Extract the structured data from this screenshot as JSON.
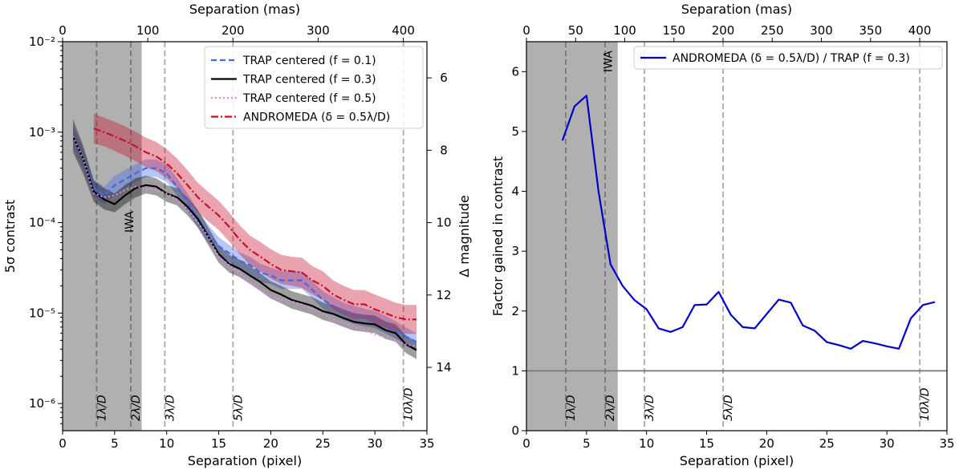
{
  "figure_title": "",
  "chart_data": [
    {
      "type": "line",
      "id": "left",
      "xlabel": "Separation (pixel)",
      "ylabel": "5σ contrast",
      "top_xlabel": "Separation (mas)",
      "right_ylabel": "Δ magnitude",
      "xlim": [
        0,
        35
      ],
      "ylim_log10": [
        -6.3,
        -2
      ],
      "top_xlim_mas": [
        0,
        427.7
      ],
      "xticks": [
        0,
        5,
        10,
        15,
        20,
        25,
        30,
        35
      ],
      "xtick_labels": [
        "0",
        "5",
        "10",
        "15",
        "20",
        "25",
        "30",
        "35"
      ],
      "yticks_log10": [
        -6,
        -5,
        -4,
        -3,
        -2
      ],
      "ytick_labels": [
        "10⁻⁶",
        "10⁻⁵",
        "10⁻⁴",
        "10⁻³",
        "10⁻²"
      ],
      "top_xticks": [
        0,
        100,
        200,
        300,
        400
      ],
      "top_xtick_labels": [
        "0",
        "100",
        "200",
        "300",
        "400"
      ],
      "right_yticks": [
        6,
        8,
        10,
        12,
        14
      ],
      "right_ytick_labels": [
        "6",
        "8",
        "10",
        "12",
        "14"
      ],
      "shaded_region": [
        0,
        7.6
      ],
      "iwa_label": "IWA",
      "iwa_x": 6.8,
      "vlines": [
        {
          "x": 3.27,
          "label": "1λ/D",
          "dark": true
        },
        {
          "x": 6.55,
          "label": "2λ/D",
          "dark": true
        },
        {
          "x": 9.82,
          "label": "3λ/D",
          "dark": false
        },
        {
          "x": 16.37,
          "label": "5λ/D",
          "dark": false
        },
        {
          "x": 32.74,
          "label": "10λ/D",
          "dark": false
        }
      ],
      "series": [
        {
          "name": "TRAP centered (f = 0.1)",
          "color": "#4169e1",
          "style": "dashed",
          "x": [
            1,
            2,
            3,
            4,
            5,
            6,
            7,
            8,
            9,
            10,
            11,
            12,
            13,
            14,
            15,
            16,
            17,
            18,
            19,
            20,
            21,
            22,
            23,
            24,
            25,
            26,
            27,
            28,
            29,
            30,
            31,
            32,
            33,
            34
          ],
          "y": [
            0.0009,
            0.0005,
            0.00024,
            0.0002,
            0.00026,
            0.0003,
            0.00035,
            0.0004,
            0.0004,
            0.00035,
            0.00025,
            0.00017,
            0.00011,
            7.5e-05,
            5.5e-05,
            4.6e-05,
            3.8e-05,
            3.4e-05,
            2.8e-05,
            2.6e-05,
            2.3e-05,
            2.3e-05,
            2.3e-05,
            1.8e-05,
            1.4e-05,
            1.2e-05,
            1.05e-05,
            9.5e-06,
            9e-06,
            8.5e-06,
            7.5e-06,
            6.5e-06,
            5.5e-06,
            4.8e-06
          ],
          "band": [
            [
              0.0007,
              0.0012
            ],
            [
              0.00038,
              0.00065
            ],
            [
              0.00019,
              0.0003
            ],
            [
              0.00016,
              0.00025
            ],
            [
              0.0002,
              0.00033
            ],
            [
              0.00024,
              0.00038
            ],
            [
              0.00028,
              0.00044
            ],
            [
              0.00032,
              0.0005
            ],
            [
              0.00032,
              0.0005
            ],
            [
              0.00028,
              0.00044
            ],
            [
              0.0002,
              0.00031
            ],
            [
              0.000135,
              0.00021
            ],
            [
              8.8e-05,
              0.000137
            ],
            [
              6e-05,
              9.4e-05
            ],
            [
              4.4e-05,
              6.9e-05
            ],
            [
              3.7e-05,
              5.7e-05
            ],
            [
              3e-05,
              4.7e-05
            ],
            [
              2.7e-05,
              4.2e-05
            ],
            [
              2.2e-05,
              3.5e-05
            ],
            [
              2.1e-05,
              3.2e-05
            ],
            [
              1.85e-05,
              2.9e-05
            ],
            [
              1.85e-05,
              2.9e-05
            ],
            [
              1.85e-05,
              2.9e-05
            ],
            [
              1.45e-05,
              2.25e-05
            ],
            [
              1.12e-05,
              1.75e-05
            ],
            [
              9.6e-06,
              1.5e-05
            ],
            [
              8.4e-06,
              1.3e-05
            ],
            [
              7.6e-06,
              1.2e-05
            ],
            [
              7.2e-06,
              1.12e-05
            ],
            [
              6.8e-06,
              1.06e-05
            ],
            [
              6e-06,
              9.4e-06
            ],
            [
              5.2e-06,
              8.1e-06
            ],
            [
              4.4e-06,
              6.9e-06
            ],
            [
              3.8e-06,
              6e-06
            ]
          ]
        },
        {
          "name": "TRAP centered (f = 0.3)",
          "color": "#000000",
          "style": "solid",
          "x": [
            1,
            2,
            3,
            4,
            5,
            6,
            7,
            8,
            9,
            10,
            11,
            12,
            13,
            14,
            15,
            16,
            17,
            18,
            19,
            20,
            21,
            22,
            23,
            24,
            25,
            26,
            27,
            28,
            29,
            30,
            31,
            32,
            33,
            34
          ],
          "y": [
            0.0009,
            0.0005,
            0.00022,
            0.00018,
            0.00016,
            0.0002,
            0.00024,
            0.00026,
            0.00025,
            0.00021,
            0.00019,
            0.00015,
            0.00011,
            7e-05,
            4.5e-05,
            3.5e-05,
            3.1e-05,
            2.6e-05,
            2.2e-05,
            1.8e-05,
            1.6e-05,
            1.4e-05,
            1.3e-05,
            1.2e-05,
            1.05e-05,
            9.8e-06,
            8.8e-06,
            8e-06,
            7.7e-06,
            7.5e-06,
            6.5e-06,
            6e-06,
            4.5e-06,
            3.9e-06
          ],
          "band": [
            [
              0.0006,
              0.0014
            ],
            [
              0.00034,
              0.0007
            ],
            [
              0.00017,
              0.00029
            ],
            [
              0.00014,
              0.00024
            ],
            [
              0.00013,
              0.00021
            ],
            [
              0.00016,
              0.00026
            ],
            [
              0.00019,
              0.00031
            ],
            [
              0.00021,
              0.00033
            ],
            [
              0.0002,
              0.00031
            ],
            [
              0.00017,
              0.00026
            ],
            [
              0.000155,
              0.00024
            ],
            [
              0.00012,
              0.00019
            ],
            [
              8.8e-05,
              0.000138
            ],
            [
              5.6e-05,
              8.8e-05
            ],
            [
              3.6e-05,
              5.6e-05
            ],
            [
              2.8e-05,
              4.4e-05
            ],
            [
              2.5e-05,
              3.9e-05
            ],
            [
              2.1e-05,
              3.3e-05
            ],
            [
              1.75e-05,
              2.75e-05
            ],
            [
              1.45e-05,
              2.25e-05
            ],
            [
              1.28e-05,
              2e-05
            ],
            [
              1.12e-05,
              1.75e-05
            ],
            [
              1.04e-05,
              1.62e-05
            ],
            [
              9.6e-06,
              1.5e-05
            ],
            [
              8.4e-06,
              1.31e-05
            ],
            [
              7.8e-06,
              1.22e-05
            ],
            [
              7e-06,
              1.1e-05
            ],
            [
              6.4e-06,
              1e-05
            ],
            [
              6.2e-06,
              9.6e-06
            ],
            [
              6e-06,
              9.4e-06
            ],
            [
              5.2e-06,
              8.1e-06
            ],
            [
              4.8e-06,
              7.5e-06
            ],
            [
              3.6e-06,
              5.6e-06
            ],
            [
              3.1e-06,
              4.9e-06
            ]
          ]
        },
        {
          "name": "TRAP centered (f = 0.5)",
          "color": "#ee82ee",
          "style": "dotted",
          "x": [
            1,
            2,
            3,
            4,
            5,
            6,
            7,
            8,
            9,
            10,
            11,
            12,
            13,
            14,
            15,
            16,
            17,
            18,
            19,
            20,
            21,
            22,
            23,
            24,
            25,
            26,
            27,
            28,
            29,
            30,
            31,
            32,
            33,
            34
          ],
          "y": [
            0.0009,
            0.0005,
            0.00021,
            0.00019,
            0.0002,
            0.00023,
            0.00025,
            0.00024,
            0.00023,
            0.00021,
            0.00018,
            0.00014,
            0.0001,
            7e-05,
            4.2e-05,
            3.4e-05,
            2.8e-05,
            2.2e-05,
            1.8e-05,
            1.55e-05,
            1.4e-05,
            1.35e-05,
            1.25e-05,
            1.1e-05,
            9.8e-06,
            8.5e-06,
            7.8e-06,
            7e-06,
            6.5e-06,
            5.8e-06,
            5.5e-06,
            5e-06,
            4.5e-06,
            4.3e-06
          ]
        },
        {
          "name": "ANDROMEDA (δ = 0.5λ/D)",
          "color": "#c8102e",
          "style": "dashdot",
          "x": [
            3,
            4,
            5,
            6,
            7,
            8,
            9,
            10,
            11,
            12,
            13,
            14,
            15,
            16,
            17,
            18,
            19,
            20,
            21,
            22,
            23,
            24,
            25,
            26,
            27,
            28,
            29,
            30,
            31,
            32,
            33,
            34
          ],
          "y": [
            0.0011,
            0.001,
            0.0009,
            0.0008,
            0.0007,
            0.0006,
            0.00054,
            0.00045,
            0.00035,
            0.00026,
            0.00019,
            0.00015,
            0.00012,
            9e-05,
            6.5e-05,
            5e-05,
            4.2e-05,
            3.5e-05,
            3e-05,
            2.9e-05,
            2.8e-05,
            2.3e-05,
            2e-05,
            1.6e-05,
            1.4e-05,
            1.25e-05,
            1.25e-05,
            1.1e-05,
            1e-05,
            9e-06,
            8.5e-06,
            8.5e-06
          ],
          "band": [
            [
              0.00075,
              0.0016
            ],
            [
              0.0007,
              0.00145
            ],
            [
              0.00062,
              0.0013
            ],
            [
              0.00055,
              0.00116
            ],
            [
              0.00048,
              0.00101
            ],
            [
              0.00041,
              0.00087
            ],
            [
              0.00037,
              0.00078
            ],
            [
              0.00031,
              0.00065
            ],
            [
              0.00024,
              0.00051
            ],
            [
              0.00018,
              0.00038
            ],
            [
              0.00013,
              0.000275
            ],
            [
              0.000103,
              0.000218
            ],
            [
              8.3e-05,
              0.000174
            ],
            [
              6.2e-05,
              0.00013
            ],
            [
              4.5e-05,
              9.4e-05
            ],
            [
              3.4e-05,
              7.2e-05
            ],
            [
              2.9e-05,
              6.1e-05
            ],
            [
              2.4e-05,
              5.1e-05
            ],
            [
              2.1e-05,
              4.4e-05
            ],
            [
              2e-05,
              4.2e-05
            ],
            [
              1.9e-05,
              4.1e-05
            ],
            [
              1.6e-05,
              3.3e-05
            ],
            [
              1.4e-05,
              2.9e-05
            ],
            [
              1.1e-05,
              2.3e-05
            ],
            [
              9.6e-06,
              2e-05
            ],
            [
              8.6e-06,
              1.8e-05
            ],
            [
              8.6e-06,
              1.8e-05
            ],
            [
              7.6e-06,
              1.6e-05
            ],
            [
              6.9e-06,
              1.45e-05
            ],
            [
              6.2e-06,
              1.3e-05
            ],
            [
              5.9e-06,
              1.23e-05
            ],
            [
              5.9e-06,
              1.23e-05
            ]
          ]
        }
      ],
      "legend_position": "top-right"
    },
    {
      "type": "line",
      "id": "right",
      "xlabel": "Separation (pixel)",
      "ylabel": "Factor gained in contrast",
      "top_xlabel": "Separation (mas)",
      "xlim": [
        0,
        35
      ],
      "ylim": [
        0,
        6.5
      ],
      "top_xlim_mas": [
        0,
        427.7
      ],
      "xticks": [
        0,
        5,
        10,
        15,
        20,
        25,
        30,
        35
      ],
      "xtick_labels": [
        "0",
        "5",
        "10",
        "15",
        "20",
        "25",
        "30",
        "35"
      ],
      "yticks": [
        0,
        1,
        2,
        3,
        4,
        5,
        6
      ],
      "ytick_labels": [
        "0",
        "1",
        "2",
        "3",
        "4",
        "5",
        "6"
      ],
      "top_xticks": [
        0,
        50,
        100,
        150,
        200,
        250,
        300,
        350,
        400
      ],
      "top_xtick_labels": [
        "0",
        "50",
        "100",
        "150",
        "200",
        "250",
        "300",
        "350",
        "400"
      ],
      "shaded_region": [
        0,
        7.6
      ],
      "iwa_label": "IWA",
      "iwa_x": 7.1,
      "hline": 1,
      "vlines": [
        {
          "x": 3.27,
          "label": "1λ/D",
          "dark": true
        },
        {
          "x": 6.55,
          "label": "2λ/D",
          "dark": true
        },
        {
          "x": 9.82,
          "label": "3λ/D",
          "dark": false
        },
        {
          "x": 16.37,
          "label": "5λ/D",
          "dark": false
        },
        {
          "x": 32.74,
          "label": "10λ/D",
          "dark": false
        }
      ],
      "series": [
        {
          "name": "ANDROMEDA (δ = 0.5λ/D) / TRAP (f = 0.3)",
          "color": "#0000cd",
          "style": "solid",
          "x": [
            3,
            4,
            5,
            6,
            7,
            8,
            9,
            10,
            11,
            12,
            13,
            14,
            15,
            16,
            17,
            18,
            19,
            20,
            21,
            22,
            23,
            24,
            25,
            26,
            27,
            28,
            29,
            30,
            31,
            32,
            33,
            34
          ],
          "y": [
            4.85,
            5.42,
            5.6,
            4.0,
            2.78,
            2.42,
            2.18,
            2.03,
            1.71,
            1.65,
            1.73,
            2.1,
            2.11,
            2.32,
            1.94,
            1.73,
            1.71,
            1.95,
            2.19,
            2.14,
            1.76,
            1.67,
            1.48,
            1.43,
            1.37,
            1.5,
            1.46,
            1.41,
            1.37,
            1.88,
            2.1,
            2.15
          ]
        }
      ],
      "legend_position": "top-right"
    }
  ]
}
